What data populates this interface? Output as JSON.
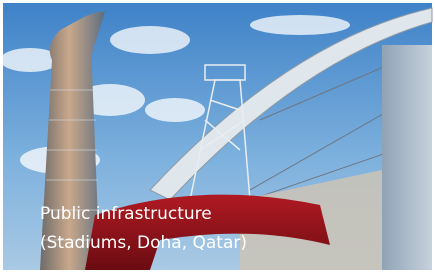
{
  "caption": {
    "lines": [
      "Public infrastructure",
      "(Stadiums, Doha, Qatar)"
    ]
  }
}
